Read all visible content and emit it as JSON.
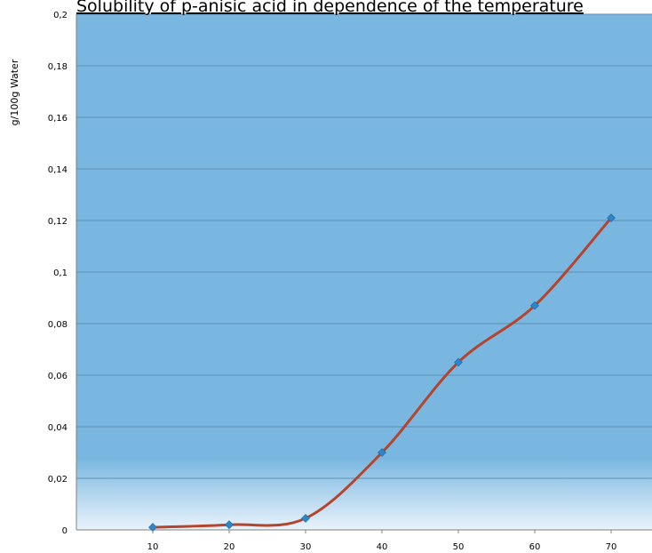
{
  "chart_data": {
    "type": "line",
    "title": "Solubility of p-anisic acid in dependence of the temperature",
    "xlabel": "",
    "ylabel": "g/100g  Water",
    "x": [
      10,
      20,
      30,
      40,
      50,
      60,
      70
    ],
    "xticks": [
      "10",
      "20",
      "30",
      "40",
      "50",
      "60",
      "70"
    ],
    "yticks": [
      "0",
      "0,02",
      "0,04",
      "0,06",
      "0,08",
      "0,1",
      "0,12",
      "0,14",
      "0,16",
      "0,18",
      "0,2"
    ],
    "series": [
      {
        "values": [
          0.001,
          0.002,
          0.0045,
          0.03,
          0.065,
          0.087,
          0.121
        ]
      }
    ],
    "ylim": [
      0,
      0.2
    ],
    "xlim": [
      0,
      75
    ],
    "grid": true,
    "smooth": true,
    "colors": {
      "plot_background": "#79b6e0",
      "line": "#b5442c",
      "marker": "#2e86c8",
      "grid": "#5b8fb5"
    }
  }
}
